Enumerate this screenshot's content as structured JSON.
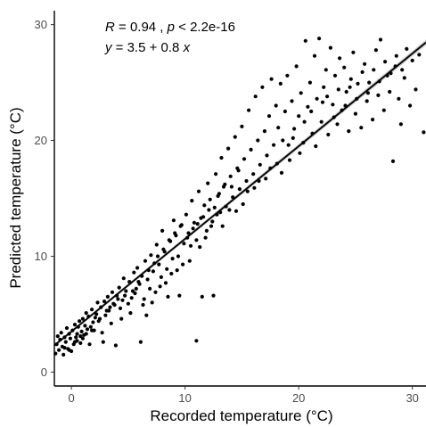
{
  "chart_data": {
    "type": "scatter",
    "title": "",
    "xlabel": "Recorded temperature (°C)",
    "ylabel": "Predicted temperature (°C)",
    "xlim": [
      -1.5,
      31.2
    ],
    "ylim": [
      -1.2,
      31.2
    ],
    "xticks": [
      0,
      10,
      20,
      30
    ],
    "yticks": [
      0,
      10,
      20,
      30
    ],
    "grid": false,
    "annotations": {
      "line1": {
        "r_label": "R",
        "r_text": " = 0.94 , ",
        "p_label": "p",
        "p_text": " < 2.2e-16"
      },
      "line2": {
        "y_label": "y",
        "eq_text": " = 3.5 + 0.8 ",
        "x_label": "x"
      }
    },
    "regression": {
      "intercept": 3.5,
      "slope": 0.8,
      "x_range": [
        -1.5,
        31.2
      ]
    },
    "colors": {
      "points": "#000000",
      "line": "#000000",
      "band": "#999999"
    },
    "points": [
      [
        -1.4,
        1.6
      ],
      [
        -1.3,
        2.4
      ],
      [
        -1.2,
        3.1
      ],
      [
        -1.1,
        1.9
      ],
      [
        -1.0,
        2.8
      ],
      [
        -0.9,
        3.4
      ],
      [
        -0.8,
        2.2
      ],
      [
        -0.7,
        1.5
      ],
      [
        -0.6,
        3.0
      ],
      [
        -0.5,
        2.6
      ],
      [
        -0.4,
        3.8
      ],
      [
        -0.3,
        2.0
      ],
      [
        -0.2,
        3.3
      ],
      [
        -0.1,
        2.9
      ],
      [
        0.0,
        1.8
      ],
      [
        0.1,
        3.6
      ],
      [
        0.2,
        2.4
      ],
      [
        0.3,
        4.1
      ],
      [
        0.4,
        3.0
      ],
      [
        0.5,
        2.7
      ],
      [
        0.6,
        3.9
      ],
      [
        0.7,
        4.4
      ],
      [
        0.8,
        2.5
      ],
      [
        0.9,
        3.5
      ],
      [
        1.0,
        4.6
      ],
      [
        1.1,
        3.2
      ],
      [
        1.2,
        4.0
      ],
      [
        1.3,
        5.1
      ],
      [
        1.4,
        3.7
      ],
      [
        1.5,
        4.8
      ],
      [
        1.6,
        2.4
      ],
      [
        1.8,
        5.4
      ],
      [
        1.9,
        4.3
      ],
      [
        2.0,
        3.6
      ],
      [
        2.2,
        5.0
      ],
      [
        2.3,
        6.0
      ],
      [
        2.5,
        4.6
      ],
      [
        2.6,
        5.6
      ],
      [
        2.8,
        2.6
      ],
      [
        2.9,
        6.1
      ],
      [
        3.0,
        4.9
      ],
      [
        3.2,
        6.5
      ],
      [
        3.3,
        5.3
      ],
      [
        3.5,
        4.2
      ],
      [
        3.6,
        6.9
      ],
      [
        3.8,
        5.8
      ],
      [
        3.9,
        2.3
      ],
      [
        4.0,
        6.6
      ],
      [
        4.2,
        7.3
      ],
      [
        4.3,
        5.5
      ],
      [
        4.5,
        6.2
      ],
      [
        4.6,
        8.1
      ],
      [
        4.8,
        7.0
      ],
      [
        5.0,
        5.9
      ],
      [
        5.1,
        7.8
      ],
      [
        5.3,
        6.4
      ],
      [
        5.5,
        8.6
      ],
      [
        5.6,
        6.8
      ],
      [
        5.8,
        9.0
      ],
      [
        6.0,
        7.6
      ],
      [
        6.1,
        2.6
      ],
      [
        6.2,
        8.3
      ],
      [
        6.4,
        6.3
      ],
      [
        6.5,
        9.6
      ],
      [
        6.7,
        8.0
      ],
      [
        6.9,
        7.2
      ],
      [
        7.0,
        10.1
      ],
      [
        7.2,
        8.7
      ],
      [
        7.4,
        6.9
      ],
      [
        7.5,
        11.0
      ],
      [
        7.7,
        9.3
      ],
      [
        7.9,
        8.2
      ],
      [
        8.0,
        12.2
      ],
      [
        8.2,
        10.4
      ],
      [
        8.4,
        8.9
      ],
      [
        8.5,
        6.5
      ],
      [
        8.7,
        11.3
      ],
      [
        8.9,
        9.8
      ],
      [
        9.0,
        13.1
      ],
      [
        9.2,
        11.8
      ],
      [
        9.4,
        10.0
      ],
      [
        9.5,
        6.6
      ],
      [
        9.7,
        12.7
      ],
      [
        9.9,
        11.1
      ],
      [
        10.1,
        13.6
      ],
      [
        10.3,
        12.0
      ],
      [
        10.4,
        9.6
      ],
      [
        10.6,
        14.8
      ],
      [
        10.8,
        12.9
      ],
      [
        11.0,
        11.4
      ],
      [
        11.0,
        2.7
      ],
      [
        11.2,
        15.6
      ],
      [
        11.4,
        13.3
      ],
      [
        11.5,
        6.5
      ],
      [
        11.7,
        14.4
      ],
      [
        11.9,
        12.2
      ],
      [
        12.0,
        16.3
      ],
      [
        12.2,
        14.9
      ],
      [
        12.4,
        13.0
      ],
      [
        12.5,
        6.6
      ],
      [
        12.7,
        17.1
      ],
      [
        12.9,
        15.2
      ],
      [
        13.1,
        13.8
      ],
      [
        13.2,
        18.5
      ],
      [
        13.4,
        16.0
      ],
      [
        13.6,
        14.3
      ],
      [
        13.8,
        19.3
      ],
      [
        14.0,
        16.9
      ],
      [
        14.2,
        15.1
      ],
      [
        14.4,
        20.3
      ],
      [
        14.6,
        17.6
      ],
      [
        14.8,
        15.8
      ],
      [
        15.0,
        21.2
      ],
      [
        15.2,
        18.4
      ],
      [
        15.4,
        16.5
      ],
      [
        15.6,
        22.6
      ],
      [
        15.8,
        19.2
      ],
      [
        16.0,
        17.1
      ],
      [
        16.2,
        23.8
      ],
      [
        16.4,
        20.0
      ],
      [
        16.6,
        17.9
      ],
      [
        16.8,
        24.6
      ],
      [
        17.0,
        20.8
      ],
      [
        17.2,
        18.7
      ],
      [
        17.4,
        22.1
      ],
      [
        17.6,
        25.3
      ],
      [
        17.8,
        19.6
      ],
      [
        18.0,
        23.0
      ],
      [
        18.2,
        21.1
      ],
      [
        18.4,
        24.9
      ],
      [
        18.6,
        20.0
      ],
      [
        18.8,
        22.5
      ],
      [
        19.0,
        25.6
      ],
      [
        19.2,
        18.3
      ],
      [
        19.4,
        23.4
      ],
      [
        19.6,
        21.0
      ],
      [
        19.8,
        26.4
      ],
      [
        20.0,
        22.1
      ],
      [
        20.2,
        24.1
      ],
      [
        20.4,
        19.8
      ],
      [
        20.6,
        28.6
      ],
      [
        20.8,
        22.9
      ],
      [
        21.0,
        25.0
      ],
      [
        21.2,
        20.6
      ],
      [
        21.4,
        27.3
      ],
      [
        21.6,
        23.6
      ],
      [
        21.8,
        28.8
      ],
      [
        22.0,
        21.6
      ],
      [
        22.2,
        24.6
      ],
      [
        22.4,
        26.1
      ],
      [
        22.6,
        20.5
      ],
      [
        22.8,
        28.0
      ],
      [
        23.0,
        23.1
      ],
      [
        23.2,
        25.6
      ],
      [
        23.4,
        21.4
      ],
      [
        23.6,
        27.1
      ],
      [
        23.8,
        22.6
      ],
      [
        24.0,
        26.3
      ],
      [
        24.2,
        24.2
      ],
      [
        24.4,
        20.8
      ],
      [
        24.6,
        25.3
      ],
      [
        24.8,
        27.6
      ],
      [
        25.0,
        22.3
      ],
      [
        25.2,
        24.9
      ],
      [
        25.5,
        21.1
      ],
      [
        25.8,
        26.6
      ],
      [
        26.0,
        23.4
      ],
      [
        26.2,
        25.0
      ],
      [
        26.5,
        21.8
      ],
      [
        26.8,
        27.8
      ],
      [
        27.0,
        23.9
      ],
      [
        27.2,
        28.7
      ],
      [
        27.5,
        22.6
      ],
      [
        27.8,
        25.6
      ],
      [
        28.0,
        24.2
      ],
      [
        28.3,
        18.2
      ],
      [
        28.5,
        26.4
      ],
      [
        28.8,
        23.6
      ],
      [
        29.0,
        21.4
      ],
      [
        29.3,
        25.4
      ],
      [
        29.5,
        27.9
      ],
      [
        29.8,
        23.0
      ],
      [
        30.0,
        26.9
      ],
      [
        30.3,
        24.4
      ],
      [
        30.6,
        27.4
      ],
      [
        31.0,
        20.7
      ],
      [
        0.5,
        3.3
      ],
      [
        1.0,
        2.9
      ],
      [
        1.7,
        3.9
      ],
      [
        2.1,
        4.7
      ],
      [
        2.7,
        3.4
      ],
      [
        3.4,
        5.6
      ],
      [
        4.4,
        4.6
      ],
      [
        5.2,
        5.1
      ],
      [
        5.7,
        7.2
      ],
      [
        6.3,
        5.8
      ],
      [
        6.6,
        4.9
      ],
      [
        7.1,
        6.0
      ],
      [
        7.8,
        7.4
      ],
      [
        8.3,
        7.7
      ],
      [
        8.8,
        8.5
      ],
      [
        9.3,
        8.8
      ],
      [
        9.8,
        9.3
      ],
      [
        10.5,
        10.9
      ],
      [
        11.3,
        10.8
      ],
      [
        11.8,
        11.6
      ],
      [
        12.3,
        12.6
      ],
      [
        12.8,
        13.6
      ],
      [
        13.3,
        12.6
      ],
      [
        13.9,
        14.0
      ],
      [
        14.5,
        13.9
      ],
      [
        15.1,
        14.5
      ],
      [
        15.5,
        15.6
      ],
      [
        16.1,
        15.9
      ],
      [
        16.5,
        16.5
      ],
      [
        17.1,
        16.7
      ],
      [
        17.5,
        17.6
      ],
      [
        18.1,
        18.0
      ],
      [
        18.5,
        17.2
      ],
      [
        19.1,
        19.6
      ],
      [
        19.5,
        20.2
      ],
      [
        20.1,
        18.9
      ],
      [
        20.5,
        21.6
      ],
      [
        21.1,
        22.5
      ],
      [
        21.5,
        19.5
      ],
      [
        22.1,
        23.3
      ],
      [
        22.5,
        23.8
      ],
      [
        23.1,
        22.0
      ],
      [
        23.5,
        24.4
      ],
      [
        24.1,
        23.0
      ],
      [
        24.5,
        24.6
      ],
      [
        25.1,
        23.6
      ],
      [
        25.6,
        25.9
      ],
      [
        26.1,
        24.1
      ],
      [
        26.6,
        26.1
      ],
      [
        27.1,
        25.1
      ],
      [
        27.6,
        26.8
      ],
      [
        28.1,
        25.8
      ],
      [
        28.6,
        27.3
      ],
      [
        29.1,
        26.1
      ],
      [
        -0.6,
        2.1
      ],
      [
        -0.2,
        1.9
      ],
      [
        0.3,
        2.6
      ],
      [
        0.8,
        3.1
      ],
      [
        1.3,
        3.3
      ],
      [
        1.8,
        3.6
      ],
      [
        2.4,
        4.4
      ],
      [
        3.1,
        5.3
      ],
      [
        3.7,
        5.9
      ],
      [
        4.1,
        6.3
      ],
      [
        4.7,
        6.6
      ],
      [
        5.4,
        7.0
      ],
      [
        5.9,
        7.8
      ],
      [
        6.8,
        8.8
      ],
      [
        7.3,
        9.4
      ],
      [
        7.6,
        10.0
      ],
      [
        8.1,
        10.6
      ],
      [
        8.6,
        11.4
      ],
      [
        9.1,
        12.0
      ],
      [
        9.6,
        12.6
      ],
      [
        10.2,
        11.6
      ],
      [
        10.7,
        12.4
      ],
      [
        11.1,
        12.8
      ],
      [
        11.6,
        13.4
      ],
      [
        12.1,
        14.0
      ],
      [
        12.6,
        14.2
      ],
      [
        13.0,
        15.4
      ],
      [
        13.5,
        16.2
      ],
      [
        14.1,
        16.0
      ],
      [
        14.7,
        17.4
      ]
    ]
  }
}
